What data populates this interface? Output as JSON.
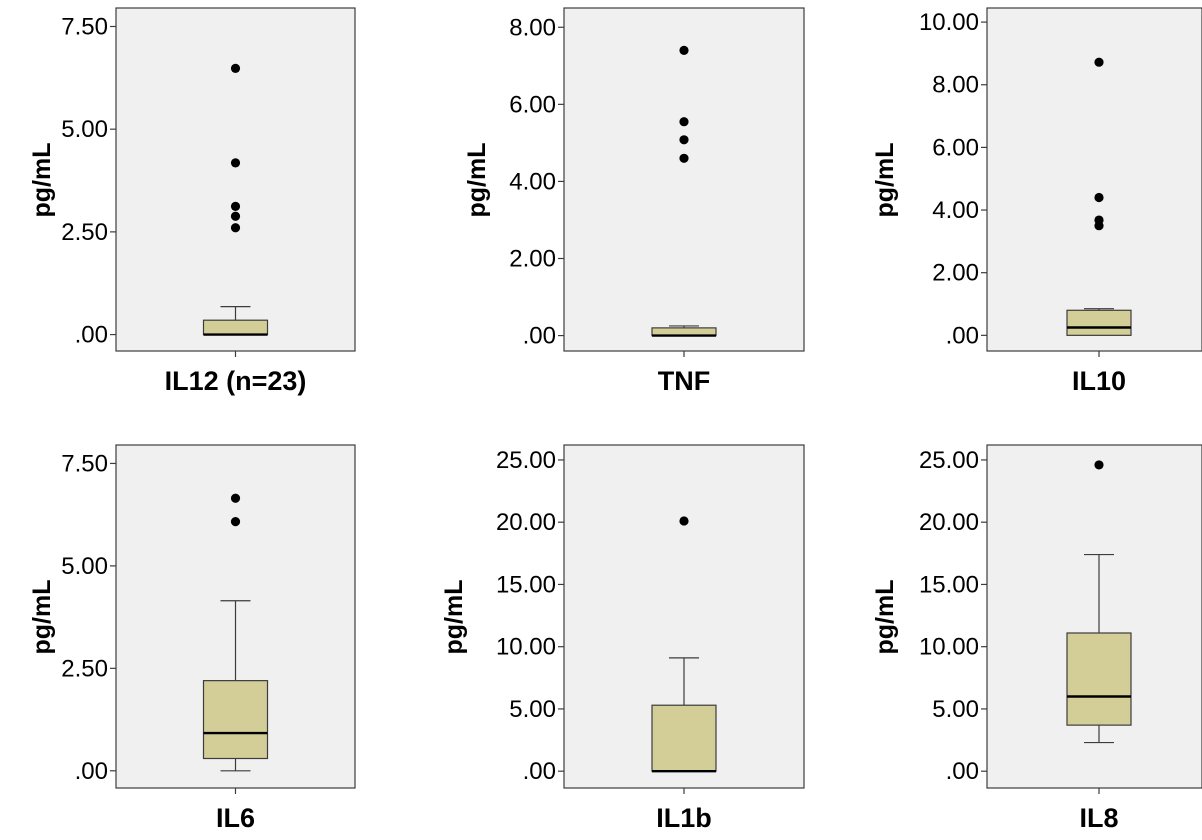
{
  "colors": {
    "plot_background": "#f0f0f0",
    "box_fill": "#d3ce97",
    "outline": "#3c3c3c",
    "outlier": "#000000"
  },
  "chart_data": [
    {
      "type": "boxplot",
      "xlabel": "IL12 (n=23)",
      "ylabel": "pg/mL",
      "ylim": [
        -0.4,
        7.95
      ],
      "ticks": [
        0,
        2.5,
        5,
        7.5
      ],
      "tick_labels": [
        ".00",
        "2.50",
        "5.00",
        "7.50"
      ],
      "box": {
        "whisker_low": 0,
        "q1": 0,
        "median": 0,
        "q3": 0.35,
        "whisker_high": 0.68
      },
      "outliers": [
        6.48,
        4.18,
        3.12,
        2.88,
        2.6
      ]
    },
    {
      "type": "boxplot",
      "xlabel": "TNF",
      "ylabel": "pg/mL",
      "ylim": [
        -0.4,
        8.5
      ],
      "ticks": [
        0,
        2,
        4,
        6,
        8
      ],
      "tick_labels": [
        ".00",
        "2.00",
        "4.00",
        "6.00",
        "8.00"
      ],
      "box": {
        "whisker_low": 0,
        "q1": 0,
        "median": 0,
        "q3": 0.2,
        "whisker_high": 0.25
      },
      "outliers": [
        7.4,
        5.55,
        5.08,
        4.6
      ]
    },
    {
      "type": "boxplot",
      "xlabel": "IL10",
      "ylabel": "pg/mL",
      "ylim": [
        -0.5,
        10.45
      ],
      "ticks": [
        0,
        2,
        4,
        6,
        8,
        10
      ],
      "tick_labels": [
        ".00",
        "2.00",
        "4.00",
        "6.00",
        "8.00",
        "10.00"
      ],
      "box": {
        "whisker_low": 0,
        "q1": 0,
        "median": 0.25,
        "q3": 0.8,
        "whisker_high": 0.85
      },
      "outliers": [
        8.72,
        4.4,
        3.68,
        3.5
      ]
    },
    {
      "type": "boxplot",
      "xlabel": "IL6",
      "ylabel": "pg/mL",
      "ylim": [
        -0.42,
        7.95
      ],
      "ticks": [
        0,
        2.5,
        5,
        7.5
      ],
      "tick_labels": [
        ".00",
        "2.50",
        "5.00",
        "7.50"
      ],
      "box": {
        "whisker_low": 0,
        "q1": 0.3,
        "median": 0.92,
        "q3": 2.2,
        "whisker_high": 4.15
      },
      "outliers": [
        6.65,
        6.08
      ]
    },
    {
      "type": "boxplot",
      "xlabel": "IL1b",
      "ylabel": "pg/mL",
      "ylim": [
        -1.35,
        26.2
      ],
      "ticks": [
        0,
        5,
        10,
        15,
        20,
        25
      ],
      "tick_labels": [
        ".00",
        "5.00",
        "10.00",
        "15.00",
        "20.00",
        "25.00"
      ],
      "box": {
        "whisker_low": 0,
        "q1": 0,
        "median": 0,
        "q3": 5.3,
        "whisker_high": 9.1
      },
      "outliers": [
        20.1
      ]
    },
    {
      "type": "boxplot",
      "xlabel": "IL8",
      "ylabel": "pg/mL",
      "ylim": [
        -1.35,
        26.2
      ],
      "ticks": [
        0,
        5,
        10,
        15,
        20,
        25
      ],
      "tick_labels": [
        ".00",
        "5.00",
        "10.00",
        "15.00",
        "20.00",
        "25.00"
      ],
      "box": {
        "whisker_low": 2.3,
        "q1": 3.7,
        "median": 6.0,
        "q3": 11.1,
        "whisker_high": 17.4
      },
      "outliers": [
        24.6
      ]
    }
  ]
}
